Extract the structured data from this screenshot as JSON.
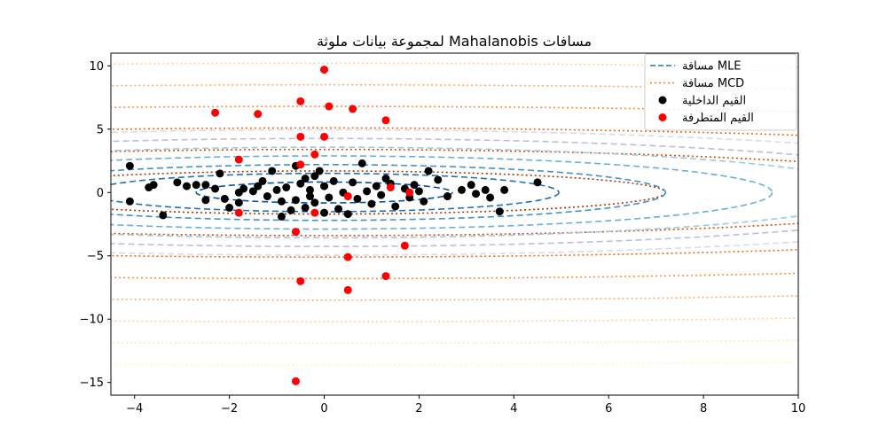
{
  "chart_data": {
    "type": "scatter",
    "title": "مسافات Mahalanobis لمجموعة بيانات ملوثة",
    "xlabel": "",
    "ylabel": "",
    "xlim": [
      -4.5,
      10
    ],
    "ylim": [
      -16,
      11
    ],
    "xticks": [
      -4,
      -2,
      0,
      2,
      4,
      6,
      8,
      10
    ],
    "yticks": [
      -15,
      -10,
      -5,
      0,
      5,
      10
    ],
    "grid": false,
    "legend_position": "top-right",
    "legend": [
      {
        "label": "مسافة MLE",
        "style": "dashed",
        "color": "#1f77b4"
      },
      {
        "label": "مسافة MCD",
        "style": "dotted",
        "color": "#ff7f0e"
      },
      {
        "label": "القيم الداخلية",
        "style": "marker",
        "color": "#000000"
      },
      {
        "label": "القيم المتطرفة",
        "style": "marker",
        "color": "#ff0000"
      }
    ],
    "contours": {
      "mle": {
        "center": [
          0.0,
          0.0
        ],
        "semi_axes_per_level": [
          1.8,
          0.55
        ],
        "levels": [
          1.5,
          2.75,
          4.0,
          5.25,
          6.5,
          7.75,
          9.0
        ],
        "colors": [
          "#08519c",
          "#2171b5",
          "#4292c6",
          "#6baed6",
          "#9ecae1",
          "#bcbddc",
          "#dadaeb"
        ]
      },
      "mcd": {
        "center": [
          0.0,
          0.0
        ],
        "semi_axes_per_level": [
          3.6,
          0.85
        ],
        "levels": [
          2.0,
          4.0,
          6.0,
          8.0,
          10.0,
          12.0,
          14.0,
          16.0
        ],
        "colors": [
          "#a63603",
          "#d94801",
          "#f16913",
          "#fd8d3c",
          "#fdae6b",
          "#fdd0a2",
          "#feedac",
          "#fff7bc"
        ]
      }
    },
    "series": [
      {
        "name": "القيم الداخلية",
        "color": "#000000",
        "points": [
          [
            -4.1,
            2.1
          ],
          [
            -4.1,
            -0.7
          ],
          [
            -3.7,
            0.4
          ],
          [
            -3.6,
            0.6
          ],
          [
            -3.4,
            -1.8
          ],
          [
            -3.1,
            0.8
          ],
          [
            -2.9,
            0.5
          ],
          [
            -2.7,
            0.6
          ],
          [
            -2.5,
            0.6
          ],
          [
            -2.5,
            -0.6
          ],
          [
            -2.3,
            0.3
          ],
          [
            -2.2,
            1.5
          ],
          [
            -2.1,
            -0.5
          ],
          [
            -2.0,
            -1.2
          ],
          [
            -1.8,
            -0.8
          ],
          [
            -1.7,
            0.3
          ],
          [
            -1.5,
            0.1
          ],
          [
            -1.4,
            0.5
          ],
          [
            -1.3,
            0.9
          ],
          [
            -1.2,
            -0.3
          ],
          [
            -1.1,
            1.7
          ],
          [
            -1.0,
            0.2
          ],
          [
            -0.9,
            -0.7
          ],
          [
            -0.8,
            0.4
          ],
          [
            -0.7,
            -1.4
          ],
          [
            -0.6,
            2.1
          ],
          [
            -0.6,
            -0.6
          ],
          [
            -0.5,
            0.7
          ],
          [
            -0.4,
            -1.2
          ],
          [
            -0.4,
            1.1
          ],
          [
            -0.3,
            0.2
          ],
          [
            -0.2,
            1.3
          ],
          [
            -0.2,
            -0.8
          ],
          [
            -0.1,
            1.7
          ],
          [
            0.0,
            0.5
          ],
          [
            0.1,
            -0.4
          ],
          [
            0.2,
            0.9
          ],
          [
            0.3,
            -1.3
          ],
          [
            0.4,
            0.0
          ],
          [
            0.5,
            -1.7
          ],
          [
            0.6,
            0.8
          ],
          [
            0.7,
            -0.5
          ],
          [
            0.8,
            2.3
          ],
          [
            0.9,
            0.1
          ],
          [
            1.0,
            -0.9
          ],
          [
            1.1,
            0.5
          ],
          [
            1.2,
            -0.2
          ],
          [
            1.4,
            0.7
          ],
          [
            1.5,
            -1.1
          ],
          [
            1.7,
            0.3
          ],
          [
            1.8,
            -0.4
          ],
          [
            1.9,
            0.6
          ],
          [
            2.0,
            0.1
          ],
          [
            2.1,
            -0.7
          ],
          [
            2.2,
            1.7
          ],
          [
            2.4,
            1.0
          ],
          [
            2.6,
            -0.3
          ],
          [
            2.9,
            0.2
          ],
          [
            3.1,
            0.6
          ],
          [
            3.2,
            -0.1
          ],
          [
            3.4,
            0.2
          ],
          [
            3.5,
            -0.4
          ],
          [
            3.7,
            -1.5
          ],
          [
            3.8,
            0.2
          ],
          [
            4.5,
            0.8
          ],
          [
            -1.8,
            0.0
          ],
          [
            -0.9,
            -1.9
          ],
          [
            0.0,
            -1.6
          ],
          [
            1.3,
            1.1
          ],
          [
            -0.3,
            -0.3
          ]
        ]
      },
      {
        "name": "القيم المتطرفة",
        "color": "#ff0000",
        "points": [
          [
            0.0,
            9.7
          ],
          [
            -2.3,
            6.3
          ],
          [
            -1.4,
            6.2
          ],
          [
            -0.5,
            7.2
          ],
          [
            0.1,
            6.8
          ],
          [
            0.6,
            6.6
          ],
          [
            1.3,
            5.7
          ],
          [
            -0.5,
            4.4
          ],
          [
            0.0,
            4.4
          ],
          [
            -1.8,
            2.6
          ],
          [
            -0.5,
            2.2
          ],
          [
            -0.2,
            3.0
          ],
          [
            0.5,
            -0.3
          ],
          [
            1.8,
            0.0
          ],
          [
            1.4,
            0.4
          ],
          [
            -0.2,
            -1.6
          ],
          [
            -1.8,
            -1.6
          ],
          [
            -0.6,
            -3.1
          ],
          [
            1.7,
            -4.2
          ],
          [
            0.5,
            -5.1
          ],
          [
            -0.5,
            -7.0
          ],
          [
            1.3,
            -6.6
          ],
          [
            0.5,
            -7.7
          ],
          [
            -0.6,
            -14.9
          ]
        ]
      }
    ]
  }
}
